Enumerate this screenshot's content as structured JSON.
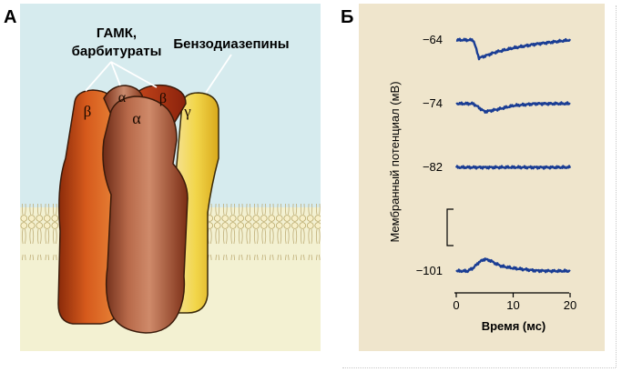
{
  "panel_a": {
    "label": "А",
    "label_gaba": "ГАМК,",
    "label_barb": "барбитураты",
    "label_benzo": "Бензодиазепины",
    "subunit_beta": "β",
    "subunit_alpha": "α",
    "subunit_gamma": "γ",
    "colors": {
      "background": "#d6ebee",
      "membrane_bg": "#f3f1d2",
      "beta_subunit": "#c24514",
      "alpha_subunit": "#8e3a1e",
      "gamma_subunit": "#f2d64a"
    }
  },
  "panel_b": {
    "label": "Б",
    "ylabel": "Мембранный потенциал (мВ)",
    "xlabel": "Время (мс)",
    "colors": {
      "background": "#efe5cc",
      "trace": "#1a3d94"
    }
  },
  "chart_data": {
    "type": "line",
    "title": "",
    "xlabel": "Время (мс)",
    "ylabel": "Мембранный потенциал (мВ)",
    "xlim": [
      0,
      20
    ],
    "xticks": [
      0,
      10,
      20
    ],
    "grid": false,
    "series": [
      {
        "holding_label": "−64",
        "x": [
          0,
          2,
          3,
          4,
          5,
          7,
          10,
          14,
          17,
          20
        ],
        "y": [
          -64,
          -64,
          -64,
          -68.5,
          -68,
          -67,
          -66,
          -65,
          -64.5,
          -64
        ]
      },
      {
        "holding_label": "−74",
        "x": [
          0,
          2,
          3,
          4,
          5,
          7,
          10,
          14,
          17,
          20
        ],
        "y": [
          -74,
          -74,
          -74,
          -75,
          -76,
          -75.5,
          -74.5,
          -74,
          -74,
          -74
        ]
      },
      {
        "holding_label": "−82",
        "x": [
          0,
          2,
          4,
          6,
          8,
          10,
          12,
          14,
          16,
          18,
          20
        ],
        "y": [
          -82,
          -82,
          -82,
          -82,
          -82,
          -82,
          -82,
          -82,
          -82,
          -82,
          -82
        ]
      },
      {
        "holding_label": "−101",
        "x": [
          0,
          2,
          3,
          4,
          5,
          6,
          7,
          8,
          10,
          12,
          14,
          17,
          20
        ],
        "y": [
          -101,
          -101,
          -100.2,
          -98.8,
          -98,
          -98.4,
          -99.2,
          -99.8,
          -100.3,
          -100.6,
          -100.9,
          -101,
          -101
        ]
      }
    ]
  }
}
